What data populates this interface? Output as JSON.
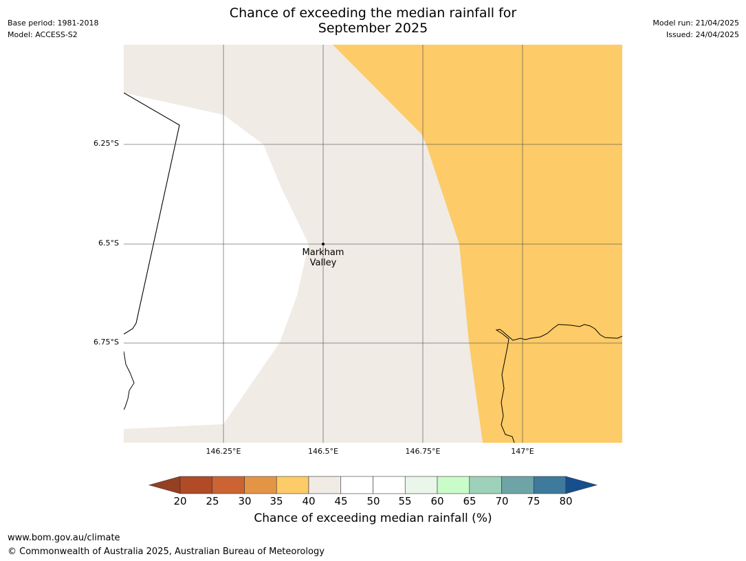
{
  "title": {
    "line1": "Chance of exceeding the median rainfall for",
    "line2": "September 2025"
  },
  "meta_left": {
    "base_period": "Base period: 1981-2018",
    "model": "Model: ACCESS-S2"
  },
  "meta_right": {
    "model_run": "Model run: 21/04/2025",
    "issued": "Issued: 24/04/2025"
  },
  "map": {
    "place_label_line1": "Markham",
    "place_label_line2": "Valley",
    "lat_labels": [
      "6.25°S",
      "6.5°S",
      "6.75°S"
    ],
    "lon_labels": [
      "146.25°E",
      "146.5°E",
      "146.75°E",
      "147°E"
    ],
    "category_colors": {
      "35_40": "#fdcb67",
      "40_45": "#f0ebe5",
      "45_55": "#ffffff"
    }
  },
  "colorbar": {
    "title": "Chance of exceeding median rainfall (%)",
    "ticks": [
      "20",
      "25",
      "30",
      "35",
      "40",
      "45",
      "50",
      "55",
      "60",
      "65",
      "70",
      "75",
      "80"
    ],
    "colors": [
      "#b04a27",
      "#cc6332",
      "#e39545",
      "#fdcb67",
      "#f0ebe5",
      "#ffffff",
      "#ffffff",
      "#eaf6ea",
      "#c9fcc9",
      "#9dd1b9",
      "#6ea4a6",
      "#3e7a9c"
    ],
    "under_color": "#963f22",
    "over_color": "#174f8e"
  },
  "footer": {
    "url": "www.bom.gov.au/climate",
    "copyright": "© Commonwealth of Australia 2025, Australian Bureau of Meteorology"
  }
}
